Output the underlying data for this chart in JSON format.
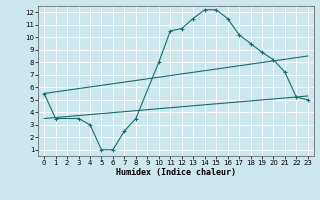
{
  "xlabel": "Humidex (Indice chaleur)",
  "background_color": "#cce8ee",
  "grid_color": "#ffffff",
  "line_color": "#1a6b6b",
  "xlim": [
    -0.5,
    23.5
  ],
  "ylim": [
    0.5,
    12.5
  ],
  "xticks": [
    0,
    1,
    2,
    3,
    4,
    5,
    6,
    7,
    8,
    9,
    10,
    11,
    12,
    13,
    14,
    15,
    16,
    17,
    18,
    19,
    20,
    21,
    22,
    23
  ],
  "yticks": [
    1,
    2,
    3,
    4,
    5,
    6,
    7,
    8,
    9,
    10,
    11,
    12
  ],
  "line1_x": [
    0,
    1,
    3,
    4,
    5,
    6,
    7,
    8,
    10,
    11,
    12,
    13,
    14,
    15,
    16,
    17,
    18,
    19,
    20,
    21,
    22,
    23
  ],
  "line1_y": [
    5.5,
    3.5,
    3.5,
    3.0,
    1.0,
    1.0,
    2.5,
    3.5,
    8.0,
    10.5,
    10.7,
    11.5,
    12.2,
    12.2,
    11.5,
    10.2,
    9.5,
    8.8,
    8.2,
    7.2,
    5.2,
    5.0
  ],
  "line2_x": [
    0,
    23
  ],
  "line2_y": [
    5.5,
    8.5
  ],
  "line3_x": [
    0,
    23
  ],
  "line3_y": [
    3.5,
    5.3
  ]
}
